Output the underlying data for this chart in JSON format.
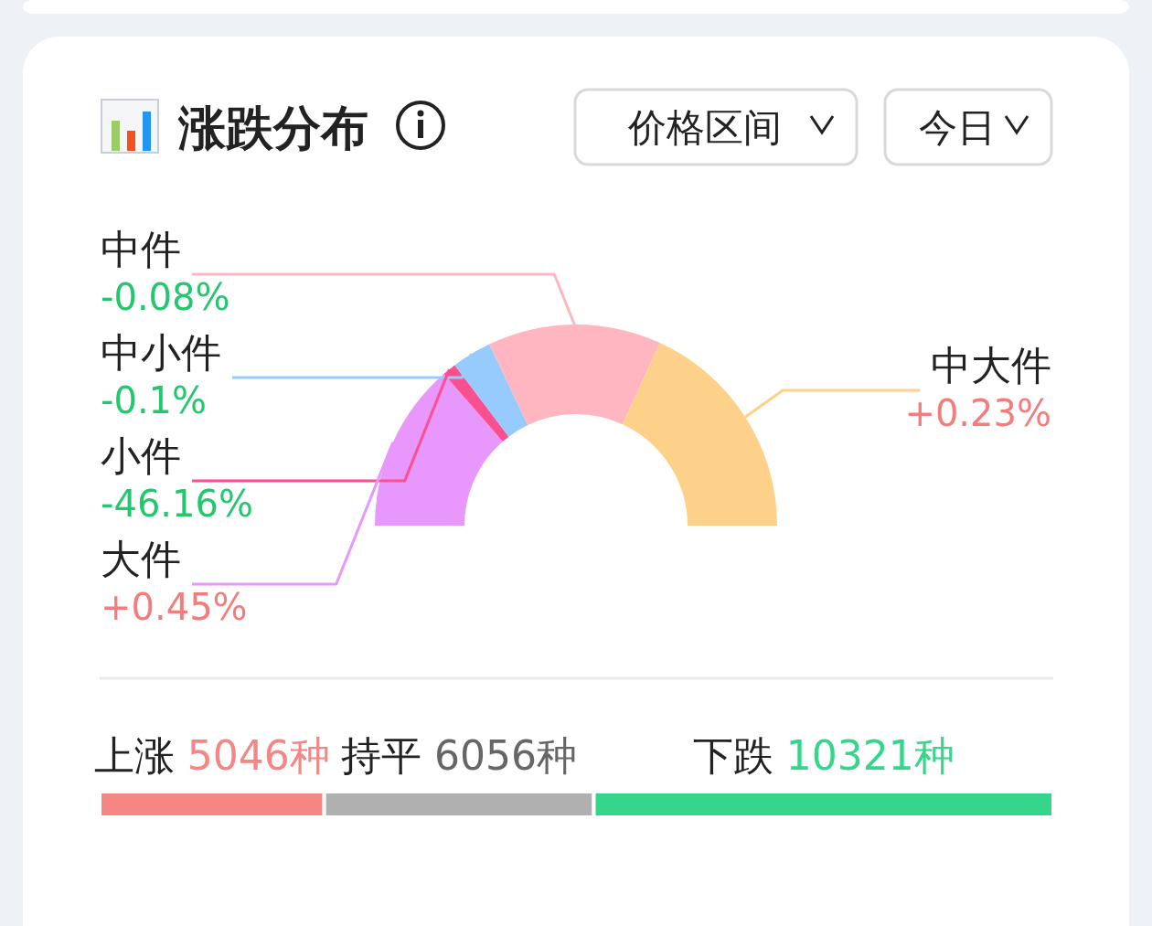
{
  "chart_data": [
    {
      "type": "donut",
      "title": "涨跌分布",
      "categories": [
        "大件",
        "小件",
        "中小件",
        "中件",
        "中大件"
      ],
      "values": [
        27.2,
        2.2,
        6.4,
        27.9,
        36.3
      ],
      "colors": [
        "#e897fc",
        "#fb4f8f",
        "#97cbfd",
        "#ffb6c1",
        "#fdd18a"
      ],
      "annotations": [
        "+0.45%",
        "-46.16%",
        "-0.1%",
        "-0.08%",
        "+0.23%",
        "价格区间",
        "今日"
      ]
    },
    {
      "type": "bar",
      "orientation": "horizontal",
      "stacked": true,
      "categories": [
        null
      ],
      "series": [
        {
          "name": "上涨",
          "color": "#f48683",
          "values": [
            5046
          ],
          "value_labels": [
            "5046种"
          ]
        },
        {
          "name": "持平",
          "color": "#b0b0b0",
          "values": [
            6056
          ],
          "value_labels": [
            "6056种"
          ]
        },
        {
          "name": "下跌",
          "color": "#36d68a",
          "values": [
            10321
          ],
          "value_labels": [
            "10321种"
          ]
        }
      ]
    }
  ]
}
